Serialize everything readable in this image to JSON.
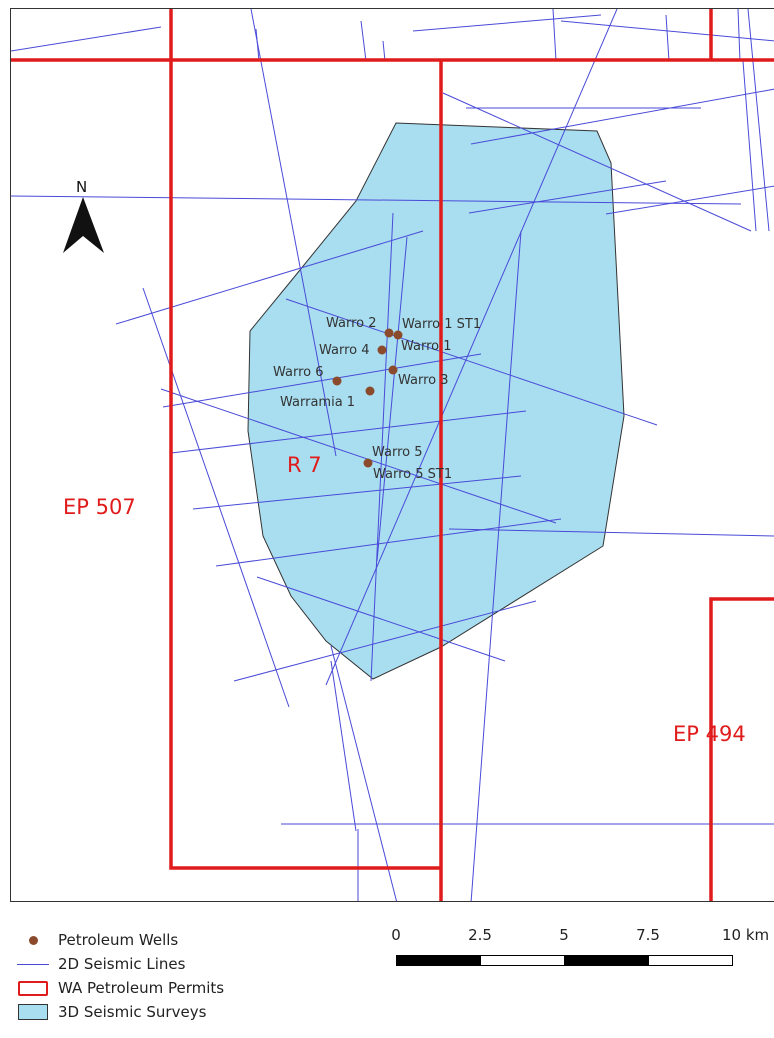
{
  "map": {
    "north_arrow_label": "N",
    "permit_labels": [
      "EP 507",
      "R 7",
      "EP 494"
    ],
    "wells": [
      {
        "name": "Warro 2"
      },
      {
        "name": "Warro 1 ST1"
      },
      {
        "name": "Warro 4"
      },
      {
        "name": "Warro 1"
      },
      {
        "name": "Warro 6"
      },
      {
        "name": "Warro 3"
      },
      {
        "name": "Warramia 1"
      },
      {
        "name": "Warro 5"
      },
      {
        "name": "Warro 5 ST1"
      }
    ],
    "colors": {
      "permit": "#e01b1b",
      "seismic_2d": "#4a4ad8",
      "survey_3d_fill": "#a8def0",
      "well": "#8b4a2b"
    }
  },
  "legend": {
    "wells": "Petroleum Wells",
    "lines_2d": "2D Seismic Lines",
    "permits": "WA Petroleum Permits",
    "surveys_3d": "3D Seismic Surveys"
  },
  "scalebar": {
    "labels": [
      "0",
      "2.5",
      "5",
      "7.5",
      "10 km"
    ]
  }
}
